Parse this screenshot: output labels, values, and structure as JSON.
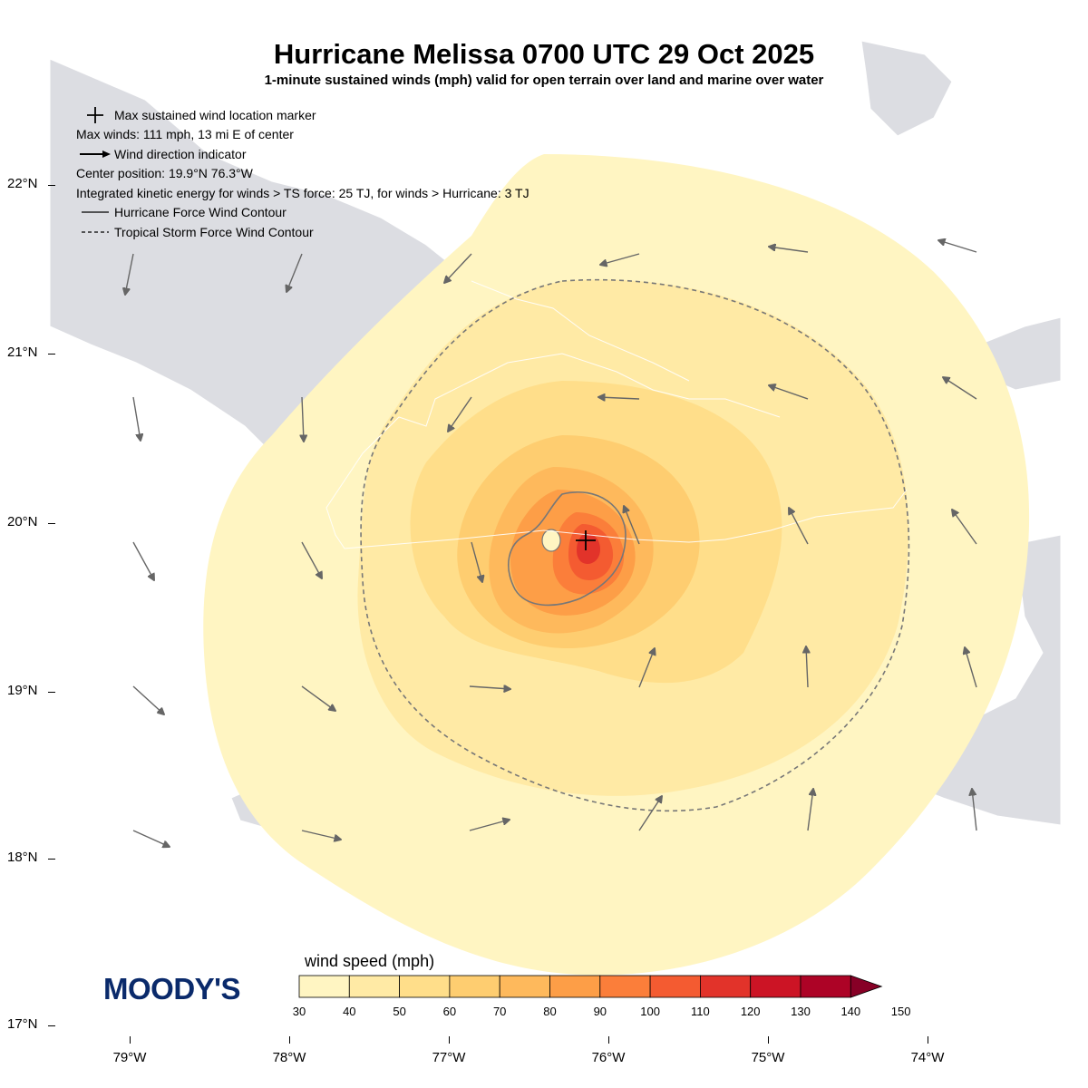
{
  "header": {
    "title": "Hurricane Melissa 0700 UTC 29 Oct 2025",
    "subtitle": "1-minute sustained winds (mph) valid for open terrain over land and marine over water"
  },
  "legend": {
    "marker_label": "Max sustained wind location marker",
    "max_winds": "Max winds: 111 mph, 13 mi E of center",
    "direction_label": "Wind direction indicator",
    "center_position": "Center position: 19.9°N 76.3°W",
    "ike": "Integrated kinetic energy for winds > TS force: 25 TJ, for winds > Hurricane: 3 TJ",
    "hurricane_contour_label": "Hurricane Force Wind Contour",
    "ts_contour_label": "Tropical Storm Force Wind Contour"
  },
  "axes": {
    "lat_labels": [
      "22°N",
      "21°N",
      "20°N",
      "19°N",
      "18°N",
      "17°N"
    ],
    "lon_labels": [
      "79°W",
      "78°W",
      "77°W",
      "76°W",
      "75°W",
      "74°W"
    ]
  },
  "colorbar": {
    "label": "wind speed (mph)",
    "ticks": [
      "30",
      "40",
      "50",
      "60",
      "70",
      "80",
      "90",
      "100",
      "110",
      "120",
      "130",
      "140",
      "150"
    ],
    "colors": [
      "#fff5c2",
      "#ffeaa5",
      "#ffde8a",
      "#fecd70",
      "#feb95c",
      "#fd9e47",
      "#fb7e3a",
      "#f45b31",
      "#e2332a",
      "#cc1425",
      "#ad0326",
      "#870026"
    ]
  },
  "logo": {
    "text": "MOODY'S"
  },
  "colors": {
    "land": "#dcdde2",
    "water": "#ffffff",
    "contour": "#777777",
    "arrow": "#666666"
  }
}
